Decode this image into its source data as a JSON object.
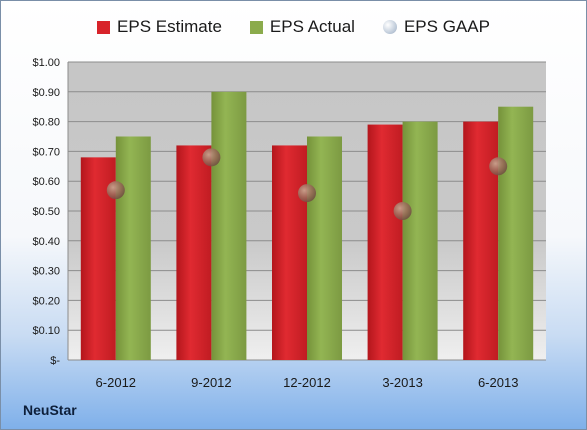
{
  "legend": {
    "estimate_label": "EPS Estimate",
    "actual_label": "EPS Actual",
    "gaap_label": "EPS GAAP"
  },
  "company": "NeuStar",
  "colors": {
    "estimate": "#d8232a",
    "actual": "#8bab4c",
    "gaap": "#b9c6d6"
  },
  "chart_data": {
    "type": "bar",
    "categories": [
      "6-2012",
      "9-2012",
      "12-2012",
      "3-2013",
      "6-2013"
    ],
    "series": [
      {
        "name": "EPS Estimate",
        "type": "bar",
        "values": [
          0.68,
          0.72,
          0.72,
          0.79,
          0.8
        ]
      },
      {
        "name": "EPS Actual",
        "type": "bar",
        "values": [
          0.75,
          0.9,
          0.75,
          0.8,
          0.85
        ]
      },
      {
        "name": "EPS GAAP",
        "type": "scatter",
        "values": [
          0.57,
          0.68,
          0.56,
          0.5,
          0.65
        ]
      }
    ],
    "ylim": [
      0,
      1.0
    ],
    "yticks": [
      0,
      0.1,
      0.2,
      0.3,
      0.4,
      0.5,
      0.6,
      0.7,
      0.8,
      0.9,
      1.0
    ],
    "ytick_labels": [
      "$-",
      "$0.10",
      "$0.20",
      "$0.30",
      "$0.40",
      "$0.50",
      "$0.60",
      "$0.70",
      "$0.80",
      "$0.90",
      "$1.00"
    ],
    "grid": true,
    "legend_position": "top"
  }
}
